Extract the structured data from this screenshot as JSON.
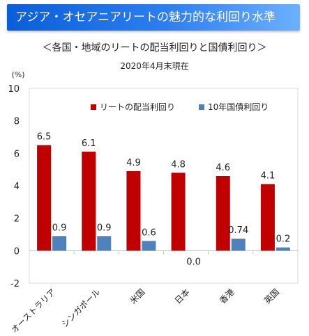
{
  "header": {
    "title": "アジア・オセアニアリートの魅力的な利回り水準",
    "subtitle": "＜各国・地域のリートの配当利回りと国債利回り＞",
    "date_note": "2020年4月末現在"
  },
  "colors": {
    "banner": "#1a6ee8",
    "reit": "#c00000",
    "bond": "#4f81bd"
  },
  "chart_data": {
    "type": "bar",
    "categories": [
      "オーストラリア",
      "シンガポール",
      "米国",
      "日本",
      "香港",
      "英国"
    ],
    "series": [
      {
        "name": "リートの配当利回り",
        "values": [
          6.5,
          6.1,
          4.9,
          4.8,
          4.6,
          4.1
        ],
        "labels": [
          "6.5",
          "6.1",
          "4.9",
          "4.8",
          "4.6",
          "4.1"
        ]
      },
      {
        "name": "10年国債利回り",
        "values": [
          0.9,
          0.9,
          0.6,
          0.0,
          0.74,
          0.2
        ],
        "labels": [
          "0.9",
          "0.9",
          "0.6",
          "0.0",
          "0.74",
          "0.2"
        ]
      }
    ],
    "y_unit": "(%)",
    "ylim": [
      -2,
      10
    ],
    "yticks": [
      -2,
      0,
      2,
      4,
      6,
      8,
      10
    ],
    "legend": "top-center",
    "grid": false
  }
}
